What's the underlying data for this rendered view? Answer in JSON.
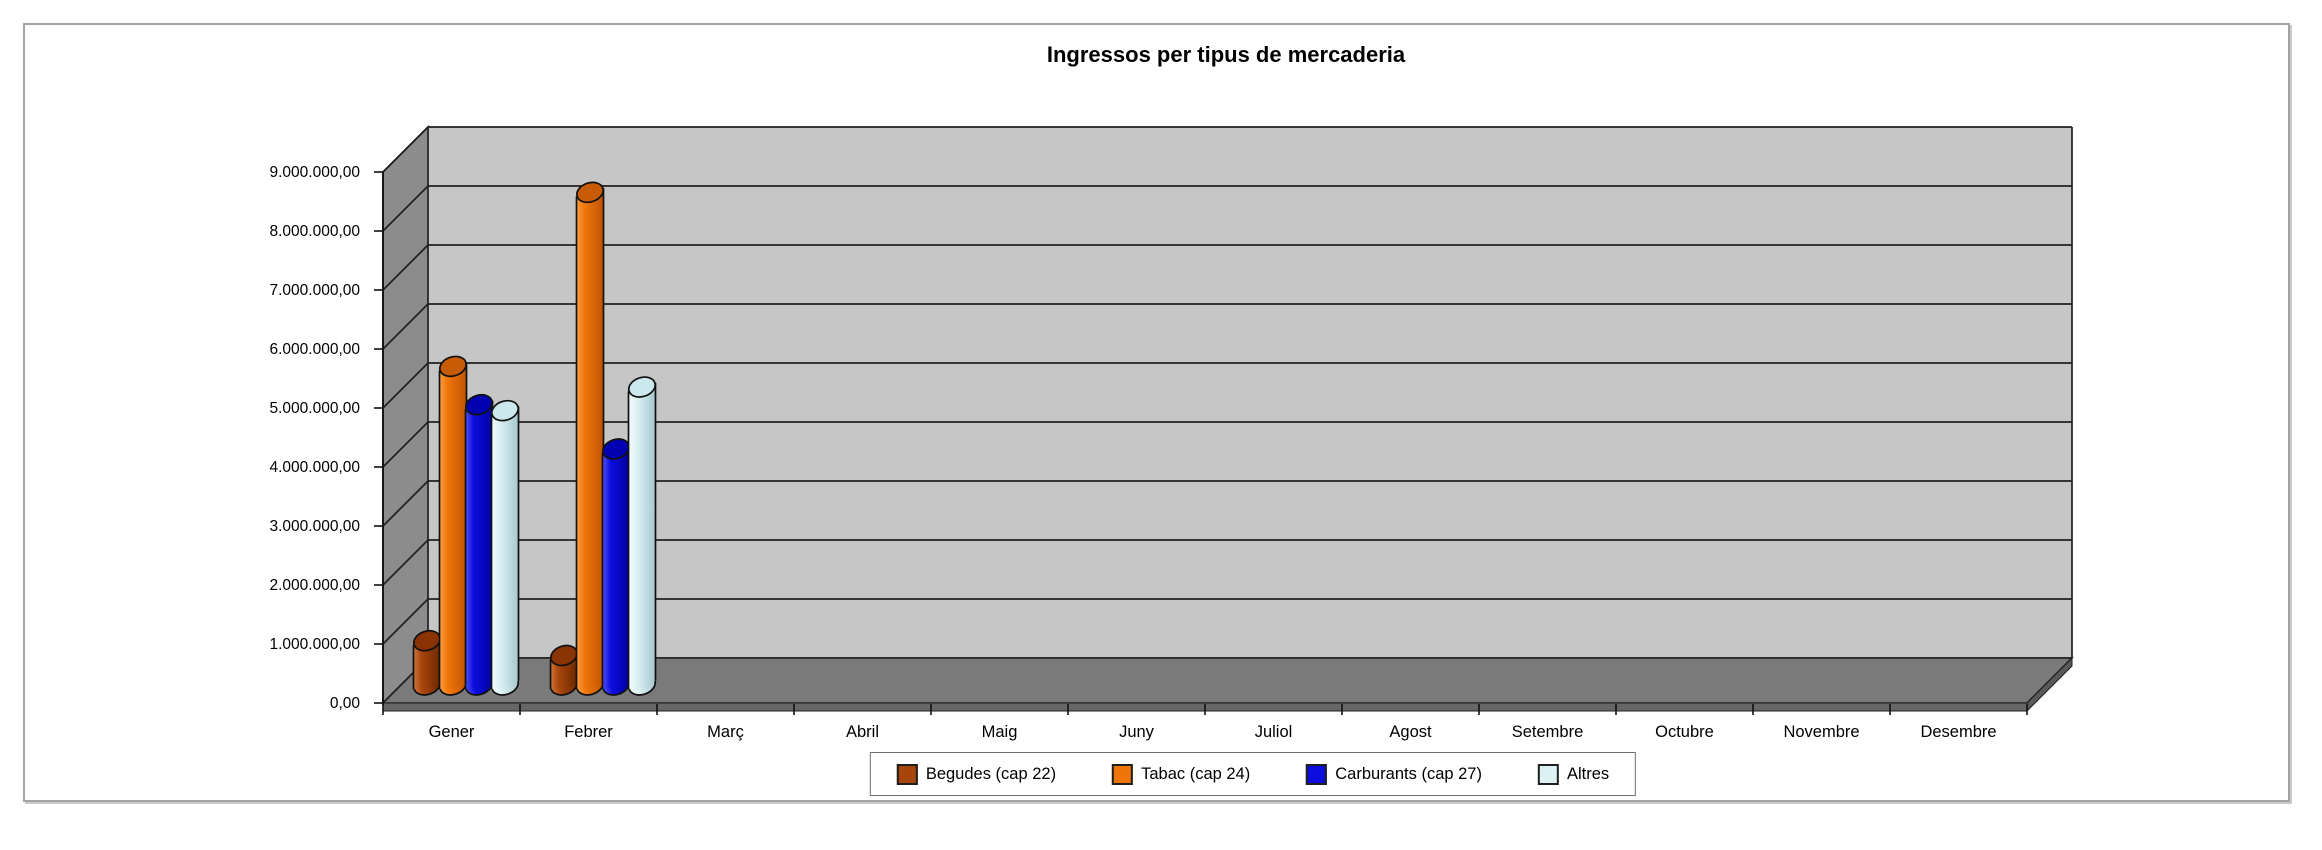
{
  "chart_data": {
    "type": "bar",
    "render_style": "3d-cylinder",
    "title": "Ingressos per tipus de mercaderia",
    "categories": [
      "Gener",
      "Febrer",
      "Març",
      "Abril",
      "Maig",
      "Juny",
      "Juliol",
      "Agost",
      "Setembre",
      "Octubre",
      "Novembre",
      "Desembre"
    ],
    "series": [
      {
        "name": "Begudes (cap 22)",
        "color": "#A8450C",
        "color_light": "#D0763A",
        "color_dark": "#6B2800",
        "color_top": "#8A3404",
        "values": [
          750000,
          500000,
          0,
          0,
          0,
          0,
          0,
          0,
          0,
          0,
          0,
          0
        ]
      },
      {
        "name": "Tabac (cap 24)",
        "color": "#F07509",
        "color_light": "#FB9E42",
        "color_dark": "#BF5404",
        "color_top": "#C85B06",
        "values": [
          5400000,
          8350000,
          0,
          0,
          0,
          0,
          0,
          0,
          0,
          0,
          0,
          0
        ]
      },
      {
        "name": "Carburants (cap 27)",
        "color": "#0D0DE0",
        "color_light": "#5050F7",
        "color_dark": "#0000A0",
        "color_top": "#0202B2",
        "values": [
          4750000,
          4000000,
          0,
          0,
          0,
          0,
          0,
          0,
          0,
          0,
          0,
          0
        ]
      },
      {
        "name": "Altres",
        "color": "#DCF1F4",
        "color_light": "#F4FBFC",
        "color_dark": "#A5C8CF",
        "color_top": "#CBE8EC",
        "values": [
          4650000,
          5050000,
          0,
          0,
          0,
          0,
          0,
          0,
          0,
          0,
          0,
          0
        ]
      }
    ],
    "ylim": [
      0,
      9000000
    ],
    "ytick_step": 1000000,
    "ytick_labels": [
      "0,00",
      "1.000.000,00",
      "2.000.000,00",
      "3.000.000,00",
      "4.000.000,00",
      "5.000.000,00",
      "6.000.000,00",
      "7.000.000,00",
      "8.000.000,00",
      "9.000.000,00"
    ],
    "xlabel": "",
    "ylabel": "",
    "grid": true,
    "legend_position": "bottom"
  },
  "colors": {
    "back_wall": "#C6C6C6",
    "side_wall": "#8C8C8C",
    "floor": "#7A7A7A",
    "floor_front": "#666666",
    "floor_side": "#595959",
    "gridline": "#202020",
    "axis": "#111111",
    "frame_border": "#A3A3A3",
    "legend_border": "#6E6E6E",
    "text": "#000000",
    "background": "#FFFFFF"
  }
}
